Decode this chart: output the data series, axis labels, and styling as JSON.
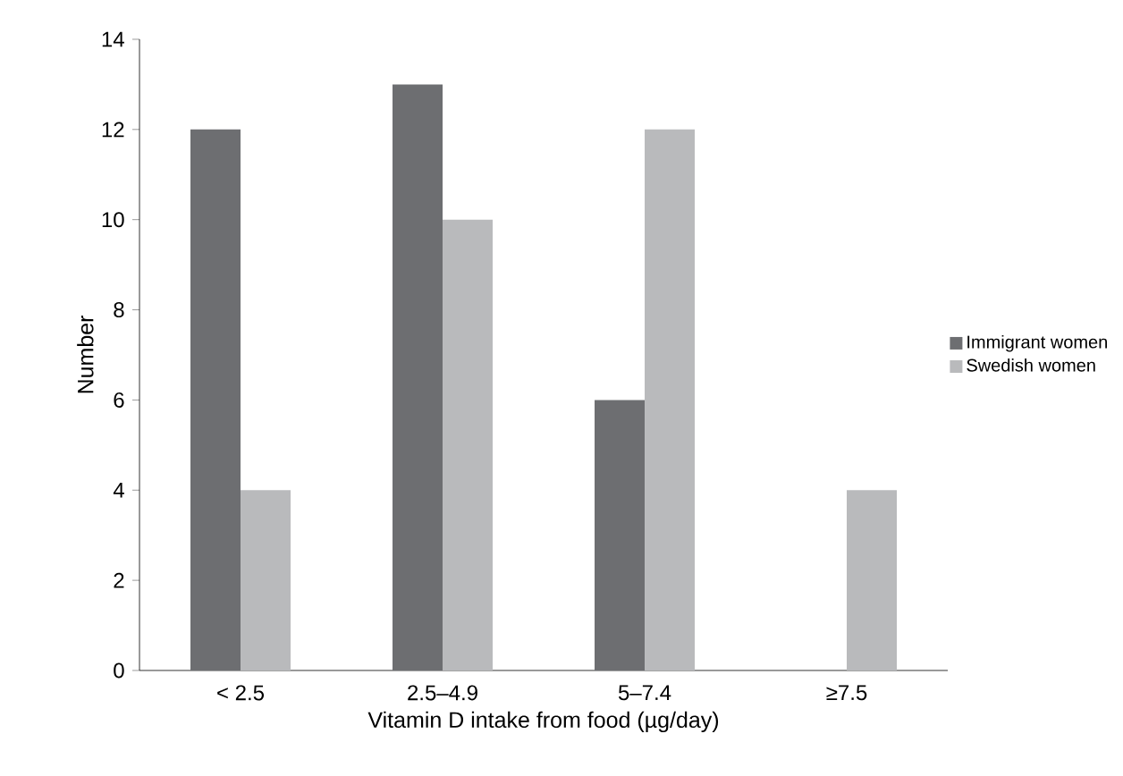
{
  "chart_data": {
    "type": "bar",
    "xlabel": "Vitamin D intake from food (µg/day)",
    "ylabel": "Number",
    "categories": [
      "< 2.5",
      "2.5–4.9",
      "5–7.4",
      "≥7.5"
    ],
    "series": [
      {
        "name": "Immigrant women",
        "color": "#6d6e71",
        "values": [
          12,
          13,
          6,
          0
        ]
      },
      {
        "name": "Swedish women",
        "color": "#b9babc",
        "values": [
          4,
          10,
          12,
          4
        ]
      }
    ],
    "ylim": [
      0,
      14
    ],
    "yticks": [
      0,
      2,
      4,
      6,
      8,
      10,
      12,
      14
    ],
    "grid": false,
    "legend": "right"
  }
}
